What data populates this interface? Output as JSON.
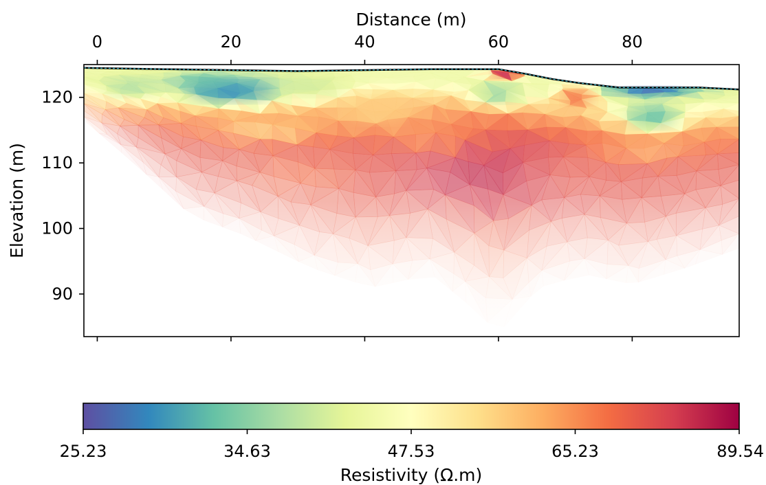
{
  "chart_data": {
    "type": "heatmap",
    "xlabel": "Distance (m)",
    "ylabel": "Elevation (m)",
    "xlim": [
      -2,
      96
    ],
    "ylim": [
      83.5,
      125
    ],
    "x_ticks": [
      0,
      20,
      40,
      60,
      80
    ],
    "x_tick_labels": [
      "0",
      "20",
      "40",
      "60",
      "80"
    ],
    "y_ticks": [
      90,
      100,
      110,
      120
    ],
    "y_tick_labels": [
      "90",
      "100",
      "110",
      "120"
    ],
    "x_axis_position": "top",
    "colorbar": {
      "label": "Resistivity (Ω.m)",
      "orientation": "horizontal",
      "ticks": [
        "25.23",
        "34.63",
        "47.53",
        "65.23",
        "89.54"
      ],
      "min": 25.23,
      "max": 89.54,
      "colors": [
        "#5e4fa2",
        "#3288bd",
        "#66c2a5",
        "#abdda4",
        "#e6f598",
        "#ffffbf",
        "#fee08b",
        "#fdae61",
        "#f46d43",
        "#d53e4f",
        "#9e0142"
      ]
    },
    "surface_profile": {
      "x": [
        -2,
        10,
        30,
        50,
        60,
        64,
        68,
        72,
        78,
        84,
        90,
        96
      ],
      "elevation": [
        124.5,
        124.3,
        124.0,
        124.3,
        124.3,
        123.6,
        122.8,
        122.2,
        121.5,
        121.5,
        121.5,
        121.2
      ]
    },
    "bottom_boundary": {
      "x": [
        -2,
        2,
        6,
        14,
        22,
        32,
        41,
        50,
        56,
        60,
        66,
        73,
        80,
        88,
        96
      ],
      "elevation": [
        116.5,
        113,
        109.5,
        102,
        99,
        94,
        91,
        93,
        88,
        84,
        91,
        93,
        91.5,
        94,
        97
      ]
    },
    "resistivity_zones": [
      {
        "x": 20,
        "elevation": 121,
        "value": 29,
        "rx": 9,
        "ry": 2.5
      },
      {
        "x": 16,
        "elevation": 122.5,
        "value": 33,
        "rx": 5,
        "ry": 1.2
      },
      {
        "x": 5,
        "elevation": 121.5,
        "value": 38,
        "rx": 5,
        "ry": 2
      },
      {
        "x": 32,
        "elevation": 121.5,
        "value": 40,
        "rx": 7,
        "ry": 2
      },
      {
        "x": 61,
        "elevation": 123.5,
        "value": 85,
        "rx": 2.5,
        "ry": 0.8
      },
      {
        "x": 60,
        "elevation": 120.5,
        "value": 36,
        "rx": 4,
        "ry": 2
      },
      {
        "x": 72,
        "elevation": 120,
        "value": 70,
        "rx": 3,
        "ry": 1.7
      },
      {
        "x": 83,
        "elevation": 121,
        "value": 27,
        "rx": 8,
        "ry": 1
      },
      {
        "x": 83,
        "elevation": 117,
        "value": 33,
        "rx": 5,
        "ry": 2.5
      },
      {
        "x": 42,
        "elevation": 118,
        "value": 57,
        "rx": 7,
        "ry": 3
      },
      {
        "x": 26,
        "elevation": 115,
        "value": 58,
        "rx": 10,
        "ry": 2
      },
      {
        "x": 50,
        "elevation": 113.5,
        "value": 62,
        "rx": 9,
        "ry": 2.5
      },
      {
        "x": 42,
        "elevation": 110.5,
        "value": 74,
        "rx": 10,
        "ry": 3
      },
      {
        "x": 60,
        "elevation": 108,
        "value": 84,
        "rx": 12,
        "ry": 5
      },
      {
        "x": 72,
        "elevation": 108,
        "value": 74,
        "rx": 10,
        "ry": 4
      },
      {
        "x": 30,
        "elevation": 108,
        "value": 70,
        "rx": 8,
        "ry": 3
      },
      {
        "x": 82,
        "elevation": 112,
        "value": 63,
        "rx": 8,
        "ry": 2
      }
    ]
  }
}
